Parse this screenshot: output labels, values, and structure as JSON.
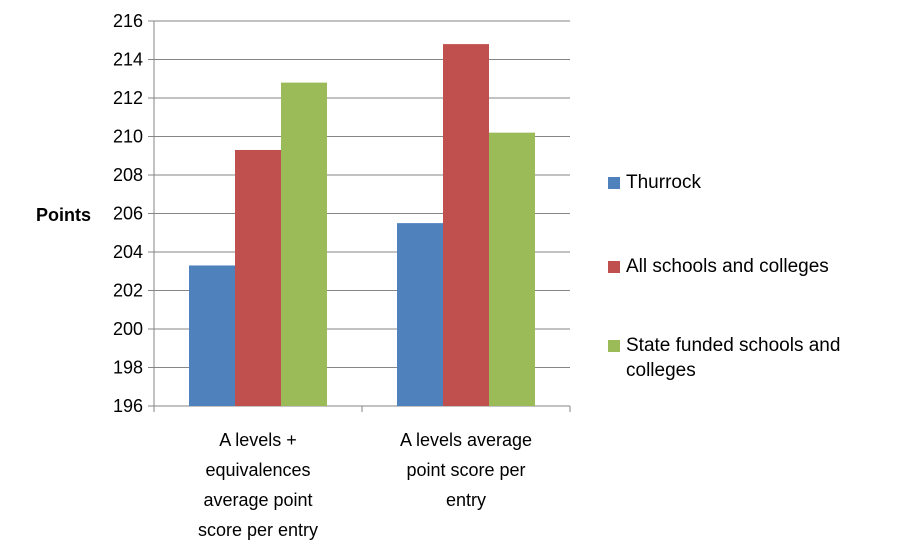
{
  "chart_data": {
    "type": "bar",
    "ylabel": "Points",
    "ylim": [
      196,
      216
    ],
    "yticks": [
      196,
      198,
      200,
      202,
      204,
      206,
      208,
      210,
      212,
      214,
      216
    ],
    "grid": true,
    "legend_position": "right",
    "categories": [
      [
        "A levels +",
        "equivalences",
        "average point",
        "score per entry"
      ],
      [
        "A levels average",
        "point score per",
        "entry"
      ]
    ],
    "series": [
      {
        "name": "Thurrock",
        "color": "#4F81BD",
        "values": [
          203.3,
          205.5
        ]
      },
      {
        "name": "All schools and colleges",
        "color": "#C0504D",
        "values": [
          209.3,
          214.8
        ]
      },
      {
        "name": "State funded schools and colleges",
        "color": "#9BBB59",
        "values": [
          212.8,
          210.2
        ]
      }
    ]
  },
  "legend": [
    {
      "lines": [
        "Thurrock"
      ]
    },
    {
      "lines": [
        "All schools and colleges"
      ]
    },
    {
      "lines": [
        "State funded schools and",
        "colleges"
      ]
    }
  ]
}
